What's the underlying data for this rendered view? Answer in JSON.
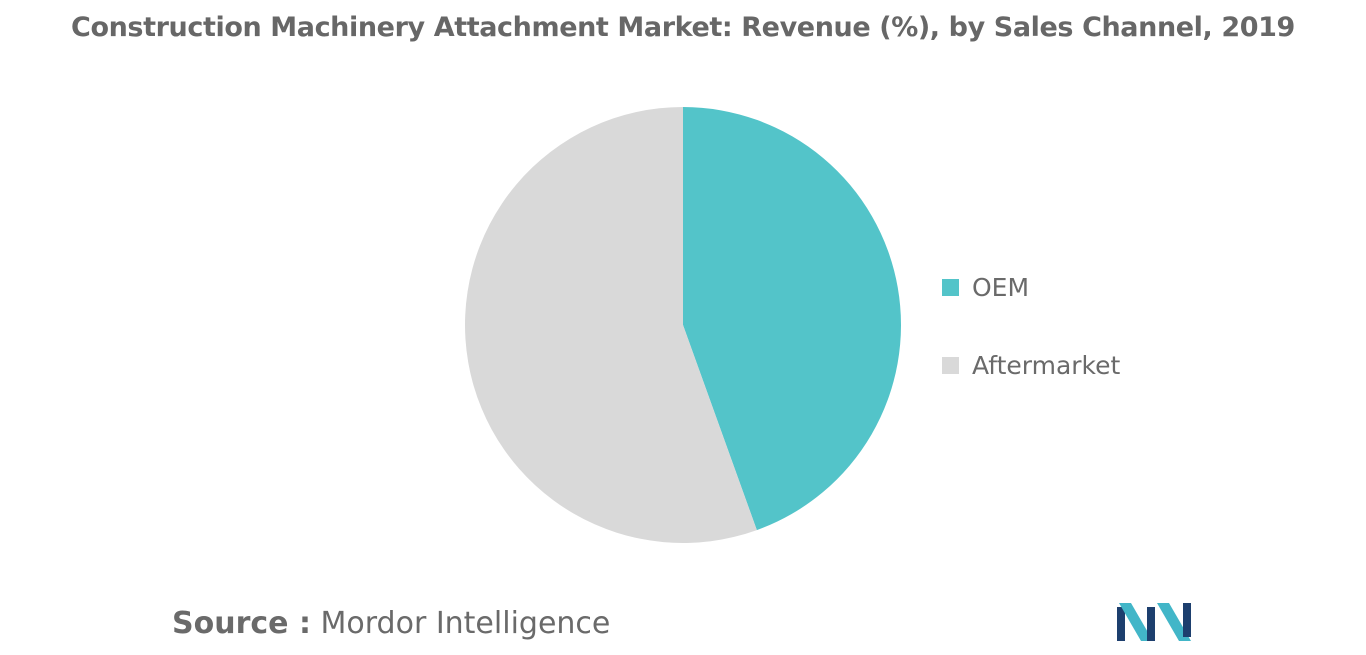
{
  "chart_data": {
    "type": "pie",
    "title": "Construction Machinery Attachment Market: Revenue (%), by Sales Channel, 2019",
    "slices": [
      {
        "name": "OEM",
        "value": 44.5,
        "color": "#53c4c9"
      },
      {
        "name": "Aftermarket",
        "value": 55.5,
        "color": "#d9d9d9"
      }
    ],
    "legend_position": "right",
    "data_labels": false
  },
  "source": {
    "prefix": "Source :",
    "text": "Mordor Intelligence"
  },
  "logo": {
    "icon": "mordor-intelligence-logo-icon",
    "colors": [
      "#1d3f6e",
      "#42b6c8"
    ]
  }
}
